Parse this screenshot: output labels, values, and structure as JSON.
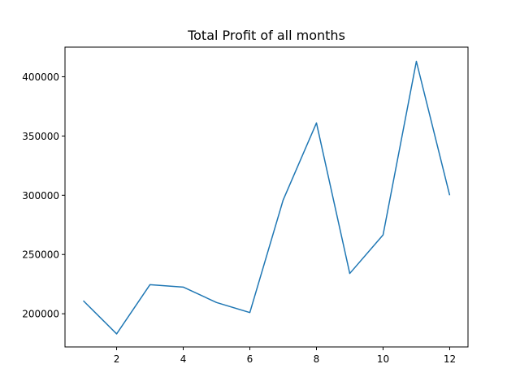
{
  "chart_data": {
    "type": "line",
    "title": "Total Profit of all months",
    "xlabel": "",
    "ylabel": "",
    "xlim": [
      0.45,
      12.55
    ],
    "ylim": [
      172000,
      425000
    ],
    "xticks": [
      2,
      4,
      6,
      8,
      10,
      12
    ],
    "xtick_labels": [
      "2",
      "4",
      "6",
      "8",
      "10",
      "12"
    ],
    "yticks": [
      200000,
      250000,
      300000,
      350000,
      400000
    ],
    "ytick_labels": [
      "200000",
      "250000",
      "300000",
      "350000",
      "400000"
    ],
    "grid": false,
    "legend": "none",
    "series": [
      {
        "color": "#1f77b4",
        "x": [
          1,
          2,
          3,
          4,
          5,
          6,
          7,
          8,
          9,
          10,
          11,
          12
        ],
        "y": [
          211000,
          183000,
          224500,
          222500,
          209500,
          201000,
          296000,
          361000,
          234000,
          266500,
          413000,
          300000
        ]
      }
    ]
  }
}
